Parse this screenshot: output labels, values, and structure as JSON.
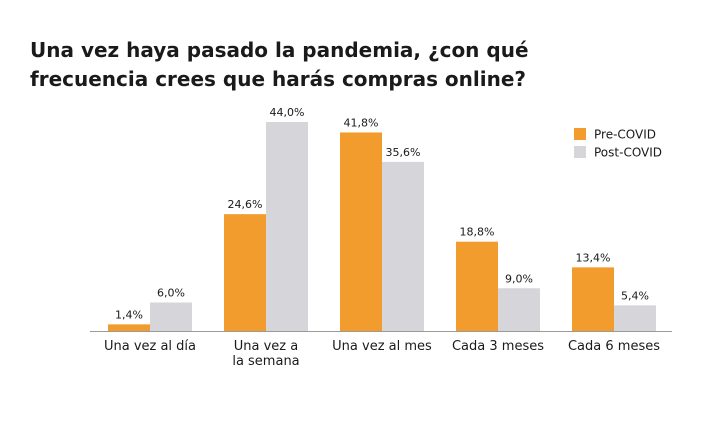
{
  "chart_data": {
    "type": "bar",
    "title": "Una vez haya pasado la pandemia, ¿con qué frecuencia crees que harás compras online?",
    "categories": [
      [
        "Una vez al día"
      ],
      [
        "Una vez a",
        "la semana"
      ],
      [
        "Una vez al mes"
      ],
      [
        "Cada 3 meses"
      ],
      [
        "Cada 6 meses"
      ]
    ],
    "series": [
      {
        "name": "Pre-COVID",
        "color": "#F39C2E",
        "values": [
          1.4,
          24.6,
          41.8,
          18.8,
          13.4
        ],
        "labels": [
          "1,4%",
          "24,6%",
          "41,8%",
          "18,8%",
          "13,4%"
        ]
      },
      {
        "name": "Post-COVID",
        "color": "#D6D6DA",
        "values": [
          6.0,
          44.0,
          35.6,
          9.0,
          5.4
        ],
        "labels": [
          "6,0%",
          "44,0%",
          "35,6%",
          "9,0%",
          "5,4%"
        ]
      }
    ],
    "ylim": [
      0,
      44
    ],
    "xlabel": "",
    "ylabel": "",
    "grid": false,
    "y_axis_visible": false,
    "legend": "top-right",
    "baseline_color": "#9A9A9A"
  }
}
